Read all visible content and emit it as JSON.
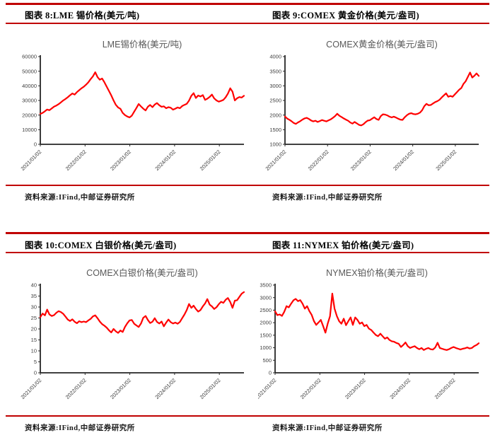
{
  "figures": [
    {
      "header": "图表 8:LME 锡价格(美元/吨)",
      "source": "资料来源:IFind,中邮证券研究所"
    },
    {
      "header": "图表 9:COMEX 黄金价格(美元/盎司)",
      "source": "资料来源:IFind,中邮证券研究所"
    },
    {
      "header": "图表 10:COMEX 白银价格(美元/盎司)",
      "source": "资料来源:IFind,中邮证券研究所"
    },
    {
      "header": "图表 11:NYMEX 铂价格(美元/盎司)",
      "source": "资料来源:IFind,中邮证券研究所"
    }
  ],
  "colors": {
    "series": "#FF0000",
    "rule": "#C00000",
    "chart_title": "#595959",
    "axis": "#262626",
    "tick_label": "#404040"
  },
  "chart_data": [
    {
      "type": "line",
      "title": "LME锡价格(美元/吨)",
      "xlabel": "",
      "ylabel": "",
      "x_tick_labels": [
        "2021/01/02",
        "2022/01/02",
        "2023/01/02",
        "2024/01/02",
        "2025/01/02"
      ],
      "x_total_years": 4.55,
      "ylim": [
        0,
        60000
      ],
      "y_ticks": [
        0,
        10000,
        20000,
        30000,
        40000,
        50000,
        60000
      ],
      "grid": false,
      "legend_position": "none",
      "series": [
        {
          "name": "LME锡价格",
          "color": "#FF0000",
          "values": [
            20800,
            21500,
            22600,
            23800,
            23300,
            24600,
            25800,
            26500,
            27500,
            28700,
            30000,
            31000,
            32200,
            33600,
            34800,
            34000,
            35700,
            37000,
            38300,
            39400,
            40800,
            42500,
            44600,
            46500,
            49300,
            46000,
            44200,
            45000,
            42500,
            39500,
            36500,
            33500,
            30000,
            27000,
            25200,
            24300,
            21500,
            20000,
            19000,
            18400,
            19600,
            22300,
            24800,
            27600,
            25900,
            24400,
            23200,
            25700,
            26900,
            25400,
            27200,
            28200,
            26700,
            25700,
            26000,
            24700,
            25400,
            25000,
            23700,
            24400,
            25200,
            24700,
            26200,
            27000,
            27700,
            29900,
            33200,
            35000,
            31700,
            33400,
            32700,
            33700,
            30400,
            31200,
            32400,
            34000,
            31400,
            30000,
            29200,
            29700,
            30400,
            32200,
            34700,
            38300,
            36000,
            30000,
            31500,
            32300,
            32000,
            33200
          ]
        }
      ]
    },
    {
      "type": "line",
      "title": "COMEX黄金价格(美元/盎司)",
      "xlabel": "",
      "ylabel": "",
      "x_tick_labels": [
        "2021/01/02",
        "2022/01/02",
        "2023/01/02",
        "2024/01/02",
        "2025/01/02"
      ],
      "x_total_years": 4.55,
      "ylim": [
        1000,
        4000
      ],
      "y_ticks": [
        1000,
        1500,
        2000,
        2500,
        3000,
        3500,
        4000
      ],
      "grid": false,
      "legend_position": "none",
      "series": [
        {
          "name": "COMEX黄金价格",
          "color": "#FF0000",
          "values": [
            1950,
            1880,
            1840,
            1790,
            1730,
            1700,
            1750,
            1790,
            1845,
            1885,
            1905,
            1865,
            1815,
            1785,
            1805,
            1765,
            1795,
            1830,
            1805,
            1785,
            1820,
            1855,
            1905,
            1965,
            2045,
            1975,
            1935,
            1885,
            1845,
            1805,
            1745,
            1710,
            1765,
            1715,
            1665,
            1645,
            1685,
            1755,
            1810,
            1825,
            1875,
            1925,
            1865,
            1835,
            1965,
            2025,
            2015,
            1990,
            1945,
            1920,
            1945,
            1915,
            1875,
            1845,
            1835,
            1925,
            1995,
            2045,
            2065,
            2035,
            2025,
            2045,
            2085,
            2165,
            2305,
            2385,
            2335,
            2345,
            2395,
            2445,
            2475,
            2525,
            2605,
            2675,
            2745,
            2625,
            2655,
            2625,
            2705,
            2785,
            2865,
            2925,
            3065,
            3155,
            3305,
            3455,
            3285,
            3345,
            3425,
            3340
          ]
        }
      ]
    },
    {
      "type": "line",
      "title": "COMEX白银价格(美元/盎司)",
      "xlabel": "",
      "ylabel": "",
      "x_tick_labels": [
        "2021/01/02",
        "2022/01/02",
        "2023/01/02",
        "2024/01/02",
        "2025/01/02"
      ],
      "x_total_years": 4.55,
      "ylim": [
        0,
        40
      ],
      "y_ticks": [
        0,
        5,
        10,
        15,
        20,
        25,
        30,
        35,
        40
      ],
      "grid": false,
      "legend_position": "none",
      "series": [
        {
          "name": "COMEX白银价格",
          "color": "#FF0000",
          "values": [
            25.4,
            27.0,
            26.2,
            28.8,
            26.6,
            25.9,
            26.3,
            27.4,
            28.1,
            27.7,
            26.9,
            25.6,
            24.3,
            23.6,
            24.4,
            23.3,
            22.6,
            23.5,
            23.1,
            23.4,
            23.1,
            23.9,
            24.6,
            25.7,
            26.2,
            24.9,
            23.4,
            22.2,
            21.5,
            20.6,
            19.4,
            18.4,
            20.0,
            18.9,
            18.2,
            19.3,
            18.6,
            20.9,
            22.6,
            23.9,
            24.1,
            22.4,
            21.6,
            20.9,
            22.5,
            25.1,
            25.9,
            24.1,
            22.7,
            23.3,
            24.9,
            23.2,
            22.5,
            23.4,
            21.2,
            22.9,
            24.3,
            23.1,
            22.5,
            22.9,
            22.4,
            23.2,
            24.9,
            26.6,
            28.6,
            31.4,
            29.6,
            30.6,
            29.1,
            27.9,
            28.6,
            30.3,
            31.6,
            33.6,
            31.1,
            30.3,
            29.1,
            29.9,
            31.3,
            32.4,
            31.9,
            33.3,
            34.1,
            32.3,
            29.6,
            32.9,
            33.1,
            34.6,
            36.1,
            36.8
          ]
        }
      ]
    },
    {
      "type": "line",
      "title": "NYMEX铂价格(美元/盎司)",
      "xlabel": "",
      "ylabel": "",
      "x_tick_labels": [
        "2021/01/02",
        "2022/01/02",
        "2023/01/02",
        "2024/01/02",
        "2025/01/02"
      ],
      "x_total_years": 4.55,
      "ylim": [
        0,
        3500
      ],
      "y_ticks": [
        0,
        500,
        1000,
        1500,
        2000,
        2500,
        3000,
        3500
      ],
      "grid": false,
      "legend_position": "none",
      "series": [
        {
          "name": "NYMEX铂价格",
          "color": "#FF0000",
          "values": [
            2450,
            2300,
            2330,
            2270,
            2430,
            2660,
            2610,
            2760,
            2890,
            2950,
            2860,
            2900,
            2760,
            2560,
            2660,
            2460,
            2310,
            2060,
            1910,
            2010,
            2110,
            1860,
            1600,
            1960,
            2260,
            3160,
            2560,
            2260,
            2060,
            1960,
            2160,
            1900,
            2060,
            2210,
            1910,
            2210,
            2110,
            1960,
            2010,
            1860,
            1910,
            1760,
            1710,
            1610,
            1510,
            1460,
            1560,
            1460,
            1360,
            1410,
            1310,
            1260,
            1240,
            1190,
            1160,
            1030,
            1110,
            1210,
            1060,
            990,
            1030,
            1060,
            990,
            940,
            990,
            910,
            960,
            990,
            940,
            930,
            1010,
            1200,
            990,
            960,
            930,
            910,
            940,
            990,
            1030,
            990,
            960,
            930,
            960,
            980,
            1010,
            970,
            990,
            1060,
            1110,
            1180
          ]
        }
      ]
    }
  ]
}
